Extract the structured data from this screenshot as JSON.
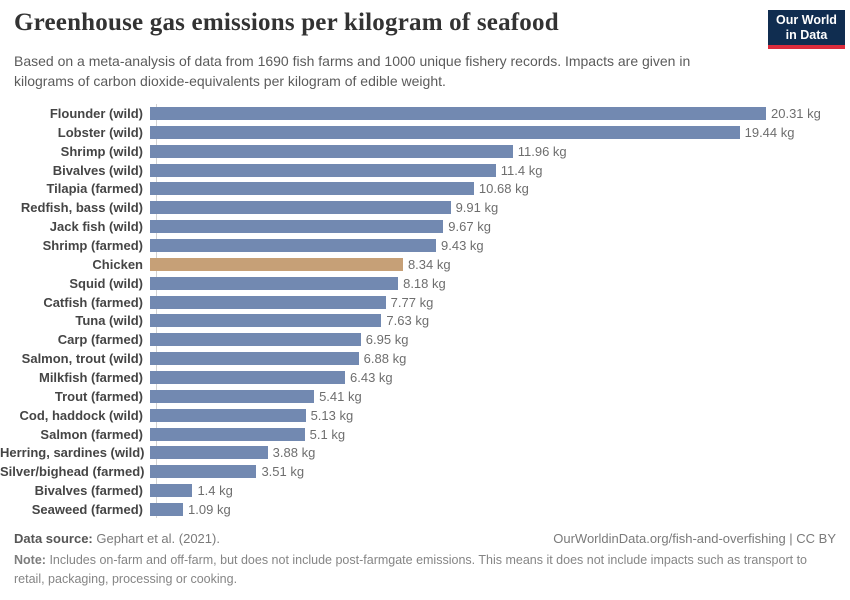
{
  "header": {
    "title": "Greenhouse gas emissions per kilogram of seafood",
    "subtitle": "Based on a meta-analysis of data from 1690 fish farms and 1000 unique fishery records. Impacts are given in kilograms of carbon dioxide-equivalents per kilogram of edible weight.",
    "logo": {
      "line1": "Our World",
      "line2": "in Data"
    }
  },
  "chart_data": {
    "type": "bar",
    "orientation": "horizontal",
    "title": "Greenhouse gas emissions per kilogram of seafood",
    "unit": "kg",
    "xlim": [
      0,
      20.31
    ],
    "grid": false,
    "categories": [
      "Flounder (wild)",
      "Lobster (wild)",
      "Shrimp (wild)",
      "Bivalves (wild)",
      "Tilapia (farmed)",
      "Redfish, bass (wild)",
      "Jack fish (wild)",
      "Shrimp (farmed)",
      "Chicken",
      "Squid (wild)",
      "Catfish (farmed)",
      "Tuna (wild)",
      "Carp (farmed)",
      "Salmon, trout (wild)",
      "Milkfish (farmed)",
      "Trout (farmed)",
      "Cod, haddock (wild)",
      "Salmon (farmed)",
      "Herring, sardines (wild)",
      "Silver/bighead (farmed)",
      "Bivalves (farmed)",
      "Seaweed (farmed)"
    ],
    "values": [
      20.31,
      19.44,
      11.96,
      11.4,
      10.68,
      9.91,
      9.67,
      9.43,
      8.34,
      8.18,
      7.77,
      7.63,
      6.95,
      6.88,
      6.43,
      5.41,
      5.13,
      5.1,
      3.88,
      3.51,
      1.4,
      1.09
    ],
    "value_labels": [
      "20.31 kg",
      "19.44 kg",
      "11.96 kg",
      "11.4 kg",
      "10.68 kg",
      "9.91 kg",
      "9.67 kg",
      "9.43 kg",
      "8.34 kg",
      "8.18 kg",
      "7.77 kg",
      "7.63 kg",
      "6.95 kg",
      "6.88 kg",
      "6.43 kg",
      "5.41 kg",
      "5.13 kg",
      "5.1 kg",
      "3.88 kg",
      "3.51 kg",
      "1.4 kg",
      "1.09 kg"
    ],
    "highlight_category": "Chicken",
    "colors": {
      "bar": "#7289b1",
      "highlight": "#c6a077"
    }
  },
  "footer": {
    "data_source_label": "Data source:",
    "data_source": "Gephart et al. (2021).",
    "attribution": "OurWorldinData.org/fish-and-overfishing | CC BY",
    "note_label": "Note:",
    "note": "Includes on-farm and off-farm, but does not include post-farmgate emissions. This means it does not include impacts such as transport to retail, packaging, processing or cooking."
  }
}
